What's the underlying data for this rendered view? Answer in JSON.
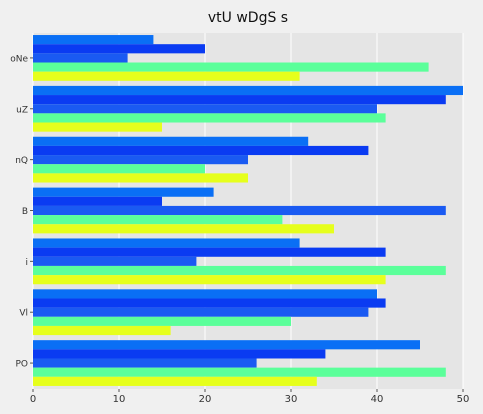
{
  "chart_data": {
    "type": "bar",
    "orientation": "horizontal",
    "title": "vtU wDgS s",
    "xlabel": "",
    "ylabel": "",
    "categories": [
      "oNe",
      "uZ",
      "nQ",
      "B",
      "i",
      "Vl",
      "PO"
    ],
    "series": [
      {
        "color": "#0a6ff5",
        "values": [
          14,
          50,
          32,
          21,
          31,
          40,
          45
        ]
      },
      {
        "color": "#0a3bf2",
        "values": [
          20,
          48,
          39,
          15,
          41,
          41,
          34
        ]
      },
      {
        "color": "#1a5af2",
        "values": [
          11,
          40,
          25,
          48,
          19,
          39,
          26
        ]
      },
      {
        "color": "#5bff9a",
        "values": [
          46,
          41,
          20,
          29,
          48,
          30,
          48
        ]
      },
      {
        "color": "#e6ff1c",
        "values": [
          31,
          15,
          25,
          35,
          41,
          16,
          33
        ]
      }
    ],
    "xlim": [
      0,
      50
    ],
    "xticks": [
      0,
      10,
      20,
      30,
      40,
      50
    ],
    "grid": true,
    "legend": "none",
    "background": "#e5e5e5"
  }
}
